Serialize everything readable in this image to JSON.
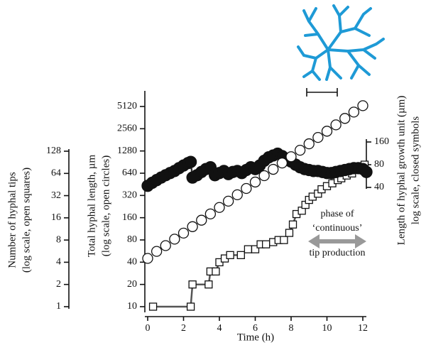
{
  "chart_data": {
    "type": "scatter",
    "xlabel": "Time (h)",
    "ylabel": [
      "Total hyphal length, µm",
      "(log scale, open circles)"
    ],
    "y2label": [
      "Length of hyphal growth unit (µm)",
      "log scale, closed symbols"
    ],
    "y3label": [
      "Number of hyphal tips",
      "(log scale, open squares)"
    ],
    "annotation": [
      "phase of",
      "‘continuous’",
      "tip production"
    ],
    "xlim": [
      0,
      12
    ],
    "xticks": [
      0,
      2,
      4,
      6,
      8,
      10,
      12
    ],
    "ylim": [
      10,
      5120
    ],
    "yticks": [
      10,
      20,
      40,
      80,
      160,
      320,
      640,
      1280,
      2560,
      5120
    ],
    "ylog": true,
    "y2lim": [
      40,
      160
    ],
    "y2ticks": [
      40,
      80,
      160
    ],
    "y2log": true,
    "y3lim": [
      1,
      128
    ],
    "y3ticks": [
      1,
      2,
      4,
      8,
      16,
      32,
      64,
      128
    ],
    "y3log": true,
    "series": [
      {
        "axis": "y",
        "marker": "circle",
        "filled": false,
        "color": "#111111",
        "x": [
          0,
          0.5,
          1,
          1.5,
          2,
          2.5,
          3,
          3.5,
          4,
          4.5,
          5,
          5.5,
          6,
          6.5,
          7,
          7.5,
          8,
          8.5,
          9,
          9.5,
          10,
          10.5,
          11,
          11.5,
          12
        ],
        "values": [
          45,
          56,
          67,
          82,
          99,
          121,
          148,
          180,
          220,
          268,
          327,
          398,
          486,
          592,
          722,
          880,
          1070,
          1310,
          1600,
          1950,
          2370,
          2890,
          3530,
          4300,
          5250
        ]
      },
      {
        "axis": "y2",
        "marker": "circle",
        "filled": true,
        "color": "#111111",
        "line_color": "#333333",
        "x": [
          0,
          0.25,
          0.5,
          0.75,
          1,
          1.25,
          1.5,
          1.75,
          2,
          2.25,
          2.4,
          2.5,
          2.75,
          3,
          3.25,
          3.5,
          3.75,
          4,
          4.25,
          4.5,
          4.75,
          5,
          5.25,
          5.5,
          5.75,
          6,
          6.25,
          6.5,
          6.75,
          7,
          7.25,
          7.5,
          7.75,
          8,
          8.25,
          8.5,
          8.75,
          9,
          9.25,
          9.5,
          9.75,
          10,
          10.25,
          10.5,
          10.75,
          11,
          11.25,
          11.5,
          11.75,
          12,
          12.2
        ],
        "values": [
          42,
          46,
          50,
          54,
          58,
          62,
          66,
          72,
          78,
          84,
          87,
          54,
          58,
          64,
          70,
          74,
          58,
          62,
          66,
          60,
          64,
          66,
          62,
          68,
          74,
          70,
          78,
          90,
          100,
          106,
          112,
          104,
          96,
          88,
          80,
          74,
          70,
          68,
          66,
          66,
          64,
          62,
          62,
          64,
          66,
          68,
          70,
          72,
          72,
          70,
          64
        ]
      },
      {
        "axis": "y3",
        "marker": "square",
        "filled": false,
        "color": "#111111",
        "line_color": "#555555",
        "x": [
          0.3,
          2.4,
          2.5,
          3.4,
          3.5,
          3.8,
          4.0,
          4.3,
          4.6,
          5.2,
          5.6,
          6.0,
          6.3,
          6.6,
          7.0,
          7.3,
          7.6,
          7.9,
          8.1,
          8.3,
          8.6,
          8.8,
          9.0,
          9.2,
          9.5,
          9.7,
          10.0,
          10.3,
          10.6,
          10.8,
          11.1,
          11.4,
          11.6,
          11.9,
          12.1
        ],
        "values": [
          1,
          1,
          2,
          2,
          3,
          3,
          4,
          4.5,
          5,
          5,
          6,
          6,
          7,
          7,
          7.5,
          8,
          8,
          10,
          13,
          18,
          20,
          24,
          28,
          31,
          34,
          39,
          43,
          47,
          52,
          55,
          60,
          64,
          72,
          80,
          84
        ]
      }
    ]
  }
}
